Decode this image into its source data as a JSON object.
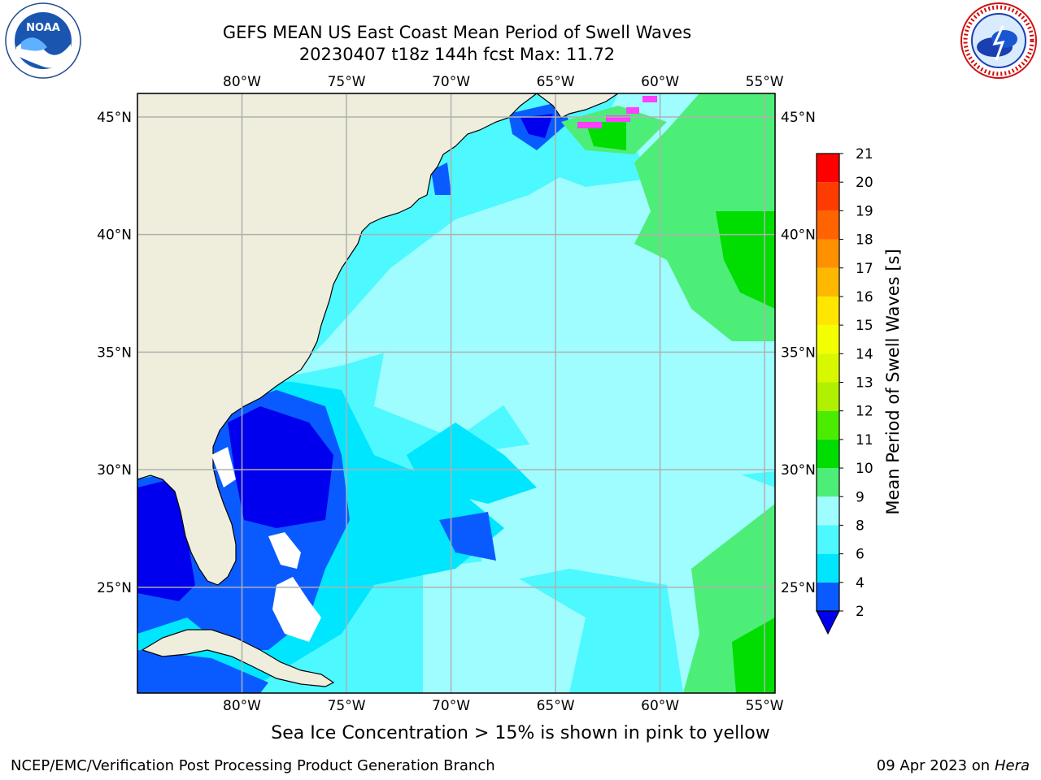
{
  "title": {
    "line1": "GEFS MEAN US East Coast Mean Period of Swell Waves",
    "line2": "20230407 t18z 144h fcst   Max: 11.72"
  },
  "logos": {
    "left": {
      "icon": "noaa-logo",
      "text": "NOAA"
    },
    "right": {
      "icon": "national-weather-service-logo"
    }
  },
  "map": {
    "lon_labels": [
      "80°W",
      "75°W",
      "70°W",
      "65°W",
      "60°W",
      "55°W"
    ],
    "lat_labels": [
      "45°N",
      "40°N",
      "35°N",
      "30°N",
      "25°N"
    ],
    "lon_range": [
      -85,
      -54.5
    ],
    "lat_range": [
      20.5,
      46
    ],
    "land_color": "#efeedc",
    "grid_color": "#b0b0b0"
  },
  "colorbar": {
    "title": "Mean Period of Swell Waves [s]",
    "ticks": [
      "2",
      "4",
      "6",
      "8",
      "9",
      "10",
      "11",
      "12",
      "13",
      "14",
      "15",
      "16",
      "17",
      "18",
      "19",
      "20",
      "21"
    ],
    "colors": [
      "#0a5bff",
      "#00e6ff",
      "#4df8ff",
      "#9ffdff",
      "#4dee77",
      "#00dd00",
      "#4bec00",
      "#b0f000",
      "#d8f800",
      "#f3ff00",
      "#ffe600",
      "#ffb800",
      "#ff9000",
      "#ff6400",
      "#ff3c00",
      "#ff0000"
    ],
    "under_color": "#0000ee"
  },
  "caption": "Sea Ice Concentration > 15% is shown in pink to yellow",
  "footer": {
    "left": "NCEP/EMC/Verification Post Processing Product Generation Branch",
    "date": "09 Apr 2023 on ",
    "machine": "Hera"
  }
}
